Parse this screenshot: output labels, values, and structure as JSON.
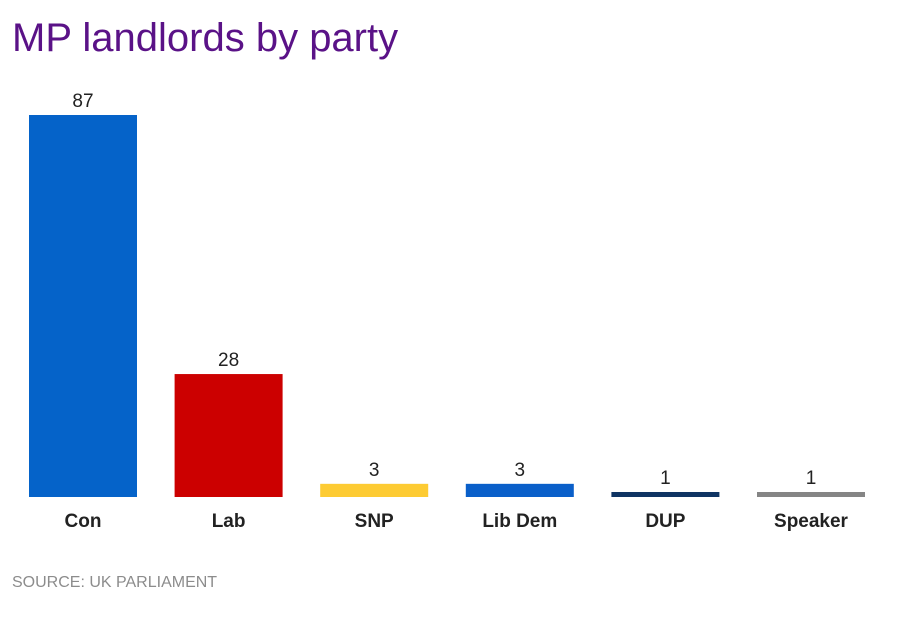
{
  "chart_data": {
    "type": "bar",
    "title": "MP landlords by party",
    "xlabel": "",
    "ylabel": "",
    "categories": [
      "Con",
      "Lab",
      "SNP",
      "Lib Dem",
      "DUP",
      "Speaker"
    ],
    "values": [
      87,
      28,
      3,
      3,
      1,
      1
    ],
    "colors": [
      "#0563c9",
      "#cc0000",
      "#fdcb33",
      "#0a5fc9",
      "#0f3463",
      "#858585"
    ],
    "ylim": [
      0,
      87
    ],
    "grid": false,
    "data_labels": true
  },
  "source": "SOURCE: UK PARLIAMENT"
}
